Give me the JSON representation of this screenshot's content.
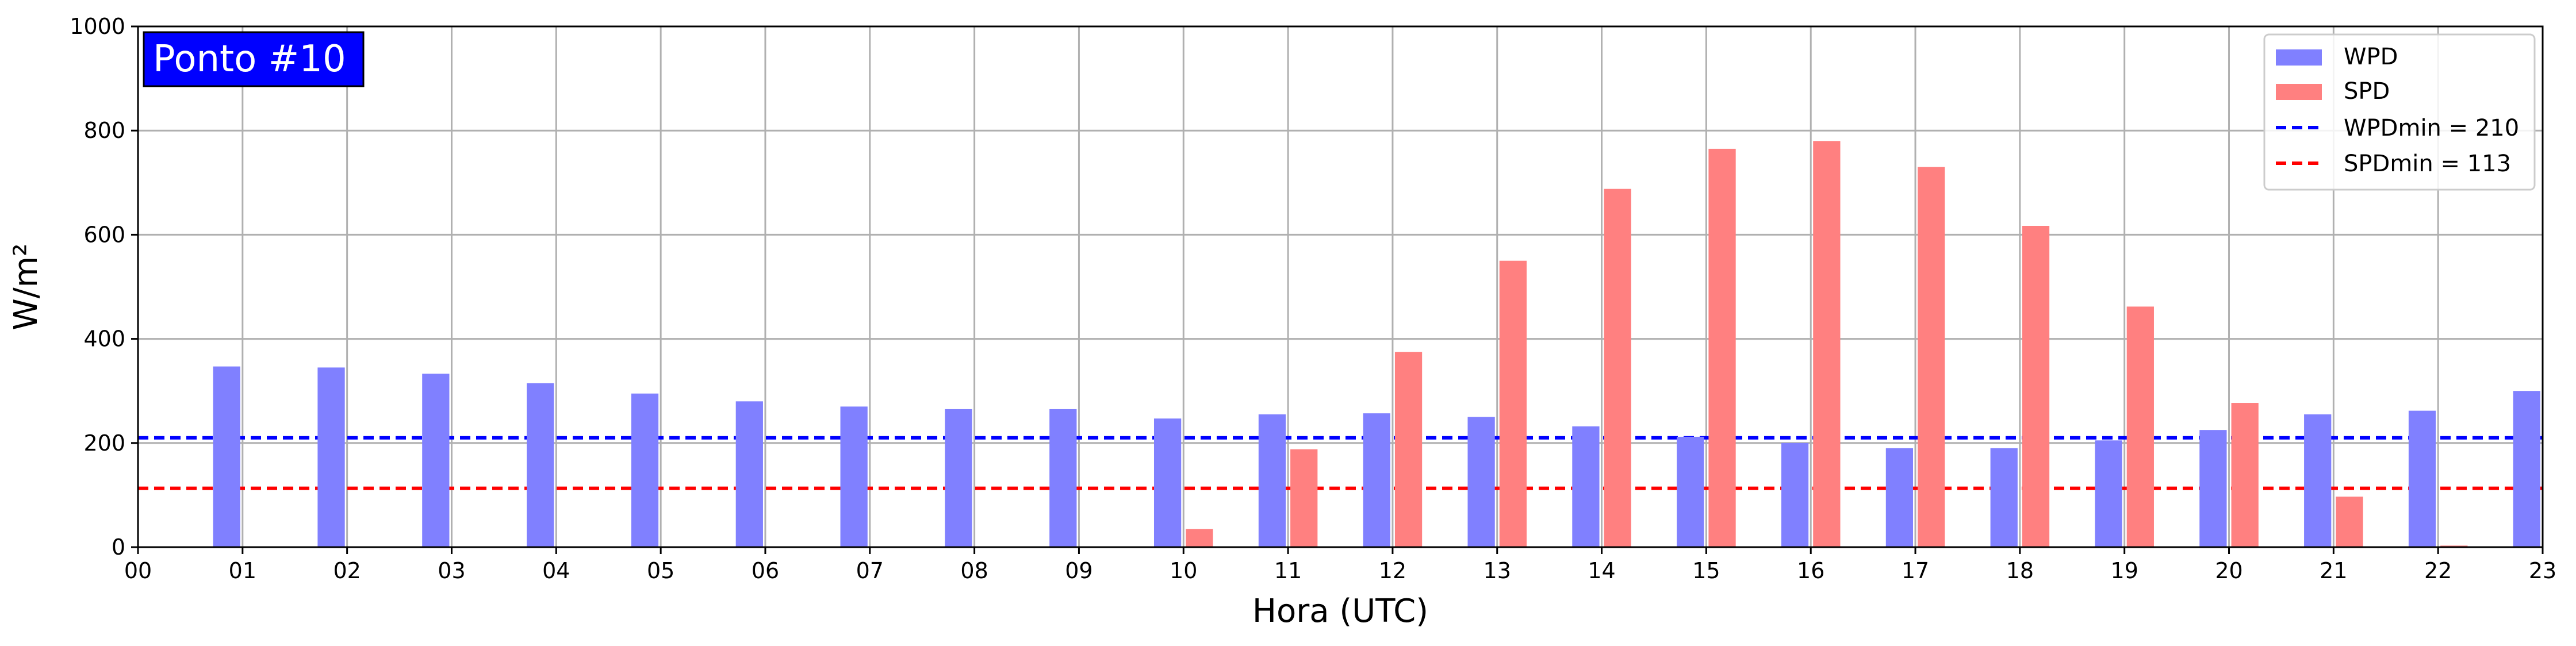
{
  "chart_data": {
    "type": "bar",
    "annotation": "Ponto #10",
    "xlabel": "Hora (UTC)",
    "ylabel": "W/m²",
    "ylim": [
      0,
      1000
    ],
    "yticks": [
      "0",
      "200",
      "400",
      "600",
      "800",
      "1000"
    ],
    "xticks": [
      "00",
      "01",
      "02",
      "03",
      "04",
      "05",
      "06",
      "07",
      "08",
      "09",
      "10",
      "11",
      "12",
      "13",
      "14",
      "15",
      "16",
      "17",
      "18",
      "19",
      "20",
      "21",
      "22",
      "23"
    ],
    "grid": true,
    "legend_position": "top-right",
    "series": [
      {
        "name": "WPD",
        "color": "#8080ff",
        "x": [
          "01",
          "02",
          "03",
          "04",
          "05",
          "06",
          "07",
          "08",
          "09",
          "10",
          "11",
          "12",
          "13",
          "14",
          "15",
          "16",
          "17",
          "18",
          "19",
          "20",
          "21",
          "22",
          "23"
        ],
        "values": [
          347,
          345,
          333,
          315,
          295,
          280,
          270,
          265,
          265,
          247,
          255,
          257,
          250,
          232,
          212,
          200,
          190,
          190,
          205,
          225,
          255,
          262,
          300
        ]
      },
      {
        "name": "SPD",
        "color": "#ff8080",
        "x": [
          "01",
          "02",
          "03",
          "04",
          "05",
          "06",
          "07",
          "08",
          "09",
          "10",
          "11",
          "12",
          "13",
          "14",
          "15",
          "16",
          "17",
          "18",
          "19",
          "20",
          "21",
          "22",
          "23"
        ],
        "values": [
          0,
          0,
          0,
          0,
          0,
          0,
          0,
          0,
          0,
          35,
          188,
          375,
          550,
          688,
          765,
          780,
          730,
          617,
          462,
          277,
          97,
          3,
          0
        ]
      }
    ],
    "thresholds": [
      {
        "name": "WPDmin = 210",
        "value": 210,
        "color": "#0000ff"
      },
      {
        "name": "SPDmin = 113",
        "value": 113,
        "color": "#ff0000"
      }
    ]
  }
}
